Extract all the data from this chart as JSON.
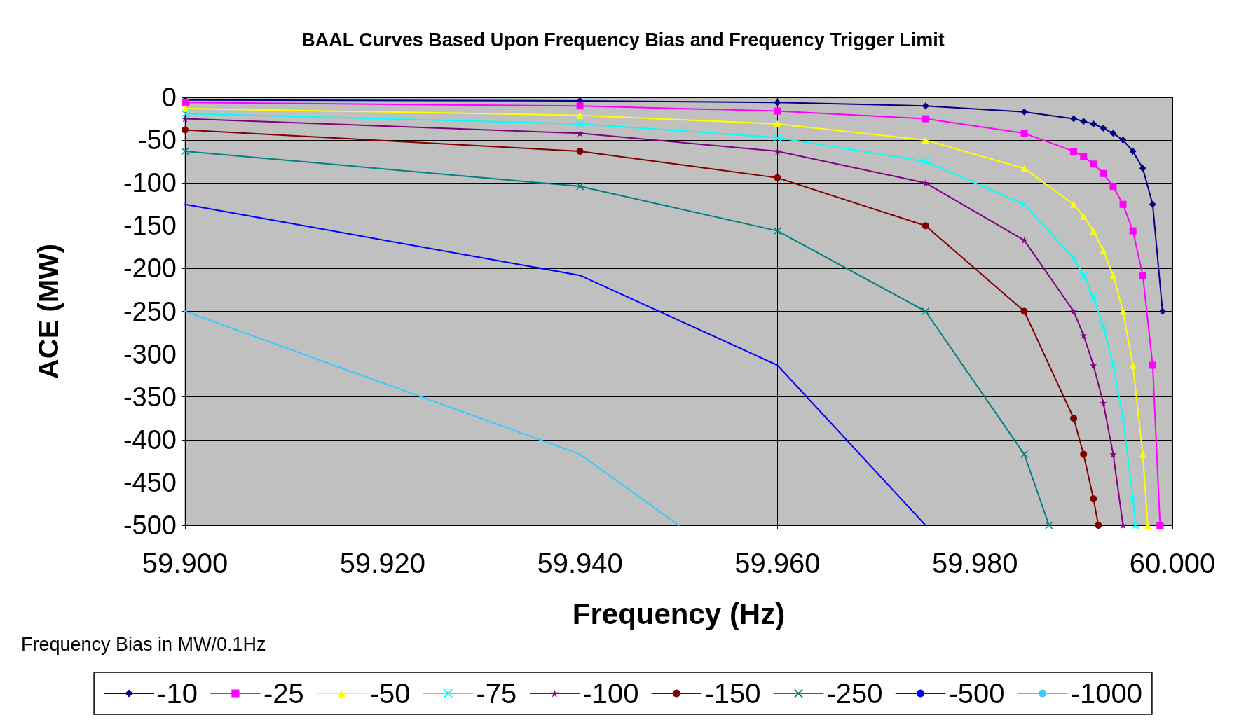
{
  "chart_data": {
    "type": "line",
    "title": "BAAL Curves Based Upon Frequency Bias and Frequency Trigger Limit",
    "xlabel": "Frequency (Hz)",
    "ylabel": "ACE (MW)",
    "legend_title": "Frequency Bias in MW/0.1Hz",
    "xlim": [
      59.9,
      60
    ],
    "xticks": [
      {
        "value": 59.9,
        "label": "59.900"
      },
      {
        "value": 59.92,
        "label": "59.920"
      },
      {
        "value": 59.94,
        "label": "59.940"
      },
      {
        "value": 59.96,
        "label": "59.960"
      },
      {
        "value": 59.98,
        "label": "59.980"
      },
      {
        "value": 60,
        "label": "60.000"
      }
    ],
    "ylim": [
      -500,
      0
    ],
    "yticks": [
      -500,
      -450,
      -400,
      -350,
      -300,
      -250,
      -200,
      -150,
      -100,
      -50,
      0
    ],
    "grid": true,
    "legend": "bottom",
    "line_style": "solid",
    "series": [
      {
        "name": "-10",
        "color": "#000080",
        "marker": "diamond",
        "x": [
          59.9,
          59.94,
          59.96,
          59.975,
          59.985,
          59.99,
          59.991,
          59.992,
          59.993,
          59.994,
          59.995,
          59.996,
          59.997,
          59.998,
          59.999
        ],
        "values": [
          -3,
          -4,
          -6,
          -10,
          -17,
          -25,
          -28,
          -31,
          -36,
          -42,
          -50,
          -63,
          -83,
          -125,
          -250
        ]
      },
      {
        "name": "-25",
        "color": "#ff00ff",
        "marker": "square",
        "x": [
          59.9,
          59.94,
          59.96,
          59.975,
          59.985,
          59.99,
          59.991,
          59.992,
          59.993,
          59.994,
          59.995,
          59.996,
          59.997,
          59.998,
          59.99875
        ],
        "values": [
          -6,
          -10,
          -16,
          -25,
          -42,
          -63,
          -69,
          -78,
          -89,
          -104,
          -125,
          -156,
          -208,
          -313,
          -500
        ]
      },
      {
        "name": "-50",
        "color": "#ffff00",
        "marker": "triangle",
        "x": [
          59.9,
          59.94,
          59.96,
          59.975,
          59.985,
          59.99,
          59.991,
          59.992,
          59.993,
          59.994,
          59.995,
          59.996,
          59.997,
          59.9975
        ],
        "values": [
          -13,
          -21,
          -31,
          -50,
          -83,
          -125,
          -139,
          -156,
          -179,
          -208,
          -250,
          -313,
          -417,
          -500
        ]
      },
      {
        "name": "-75",
        "color": "#00ffff",
        "marker": "cross",
        "x": [
          59.9,
          59.94,
          59.96,
          59.975,
          59.985,
          59.99,
          59.991,
          59.992,
          59.993,
          59.994,
          59.995,
          59.996,
          59.99625
        ],
        "values": [
          -19,
          -31,
          -47,
          -75,
          -125,
          -188,
          -208,
          -234,
          -268,
          -313,
          -375,
          -469,
          -500
        ]
      },
      {
        "name": "-100",
        "color": "#800080",
        "marker": "star",
        "x": [
          59.9,
          59.94,
          59.96,
          59.975,
          59.985,
          59.99,
          59.991,
          59.992,
          59.993,
          59.994,
          59.995
        ],
        "values": [
          -25,
          -42,
          -63,
          -100,
          -167,
          -250,
          -278,
          -313,
          -357,
          -417,
          -500
        ]
      },
      {
        "name": "-150",
        "color": "#800000",
        "marker": "circle",
        "x": [
          59.9,
          59.94,
          59.96,
          59.975,
          59.985,
          59.99,
          59.991,
          59.992,
          59.9925
        ],
        "values": [
          -38,
          -63,
          -94,
          -150,
          -250,
          -375,
          -417,
          -469,
          -500
        ]
      },
      {
        "name": "-250",
        "color": "#008080",
        "marker": "cross",
        "x": [
          59.9,
          59.94,
          59.96,
          59.975,
          59.985,
          59.9875
        ],
        "values": [
          -63,
          -104,
          -156,
          -250,
          -417,
          -500
        ]
      },
      {
        "name": "-500",
        "color": "#0000ff",
        "marker": "none",
        "x": [
          59.9,
          59.94,
          59.96,
          59.975
        ],
        "values": [
          -125,
          -208,
          -313,
          -500
        ]
      },
      {
        "name": "-1000",
        "color": "#33ccff",
        "marker": "none",
        "x": [
          59.9,
          59.94,
          59.95
        ],
        "values": [
          -250,
          -417,
          -500
        ]
      }
    ]
  }
}
